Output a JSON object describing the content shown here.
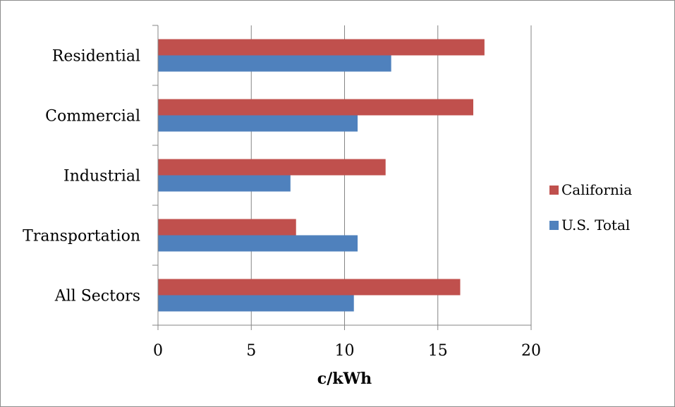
{
  "chart_data": {
    "type": "bar",
    "orientation": "horizontal",
    "title": "",
    "xlabel": "c/kWh",
    "ylabel": "",
    "xlim": [
      0,
      20
    ],
    "x_ticks": [
      0,
      5,
      10,
      15,
      20
    ],
    "grid": "vertical major gridlines",
    "legend": "right",
    "categories": [
      "Residential",
      "Commercial",
      "Industrial",
      "Transportation",
      "All Sectors"
    ],
    "series": [
      {
        "name": "California",
        "color": "#c0504d",
        "values": [
          17.5,
          16.9,
          12.2,
          7.4,
          16.2
        ]
      },
      {
        "name": "U.S. Total",
        "color": "#4f81bd",
        "values": [
          12.5,
          10.7,
          7.1,
          10.7,
          10.5
        ]
      }
    ]
  }
}
